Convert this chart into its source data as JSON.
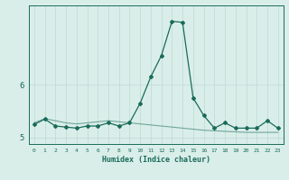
{
  "title": "",
  "xlabel": "Humidex (Indice chaleur)",
  "ylabel": "",
  "background_color": "#daeee9",
  "grid_color": "#c0ddd8",
  "line_color": "#1a6b5a",
  "x": [
    0,
    1,
    2,
    3,
    4,
    5,
    6,
    7,
    8,
    9,
    10,
    11,
    12,
    13,
    14,
    15,
    16,
    17,
    18,
    19,
    20,
    21,
    22,
    23
  ],
  "y_main": [
    5.25,
    5.35,
    5.22,
    5.2,
    5.18,
    5.22,
    5.22,
    5.28,
    5.22,
    5.28,
    5.65,
    6.15,
    6.55,
    7.2,
    7.18,
    5.75,
    5.42,
    5.18,
    5.28,
    5.18,
    5.18,
    5.18,
    5.32,
    5.18
  ],
  "y_trend": [
    5.28,
    5.36,
    5.32,
    5.28,
    5.26,
    5.28,
    5.3,
    5.32,
    5.3,
    5.28,
    5.26,
    5.24,
    5.22,
    5.2,
    5.18,
    5.16,
    5.14,
    5.13,
    5.12,
    5.11,
    5.1,
    5.1,
    5.1,
    5.1
  ],
  "ylim": [
    4.88,
    7.5
  ],
  "yticks": [
    5,
    6
  ],
  "xlim": [
    -0.5,
    23.5
  ]
}
